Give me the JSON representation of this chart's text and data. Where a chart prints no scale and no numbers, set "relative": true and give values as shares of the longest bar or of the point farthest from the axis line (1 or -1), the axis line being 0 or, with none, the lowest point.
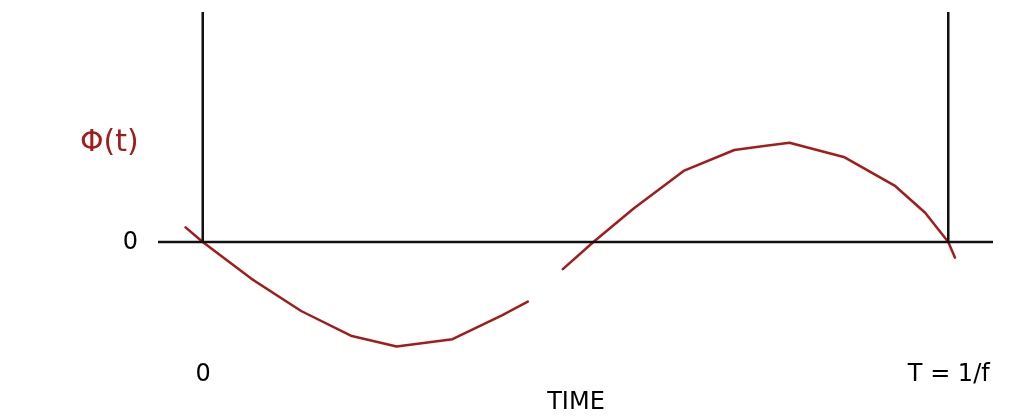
{
  "chart_data": {
    "type": "line",
    "relative": true,
    "xlabel": "TIME",
    "ylabel": "Φ(t)",
    "xlim": [
      -0.06,
      1.06
    ],
    "xticks": [
      0,
      {
        "value": 1,
        "label": "T = 1/f"
      }
    ],
    "x": [
      -0.023,
      0,
      0.065,
      0.132,
      0.2,
      0.26,
      0.335,
      0.402,
      0.436,
      0.46,
      0.483,
      0.524,
      0.578,
      0.645,
      0.713,
      0.787,
      0.861,
      0.928,
      0.969,
      1,
      1.009
    ],
    "series": [
      {
        "color": "#a31c1c",
        "values": [
          0.14,
          0,
          -0.35,
          -0.66,
          -0.9,
          -1,
          -0.93,
          -0.7,
          -0.57,
          null,
          -0.26,
          0,
          0.32,
          0.68,
          0.88,
          0.95,
          0.81,
          0.54,
          0.28,
          0,
          -0.15
        ]
      }
    ],
    "annotations": [
      "0"
    ],
    "grid": "x",
    "marker": "none",
    "line_style": "solid"
  }
}
